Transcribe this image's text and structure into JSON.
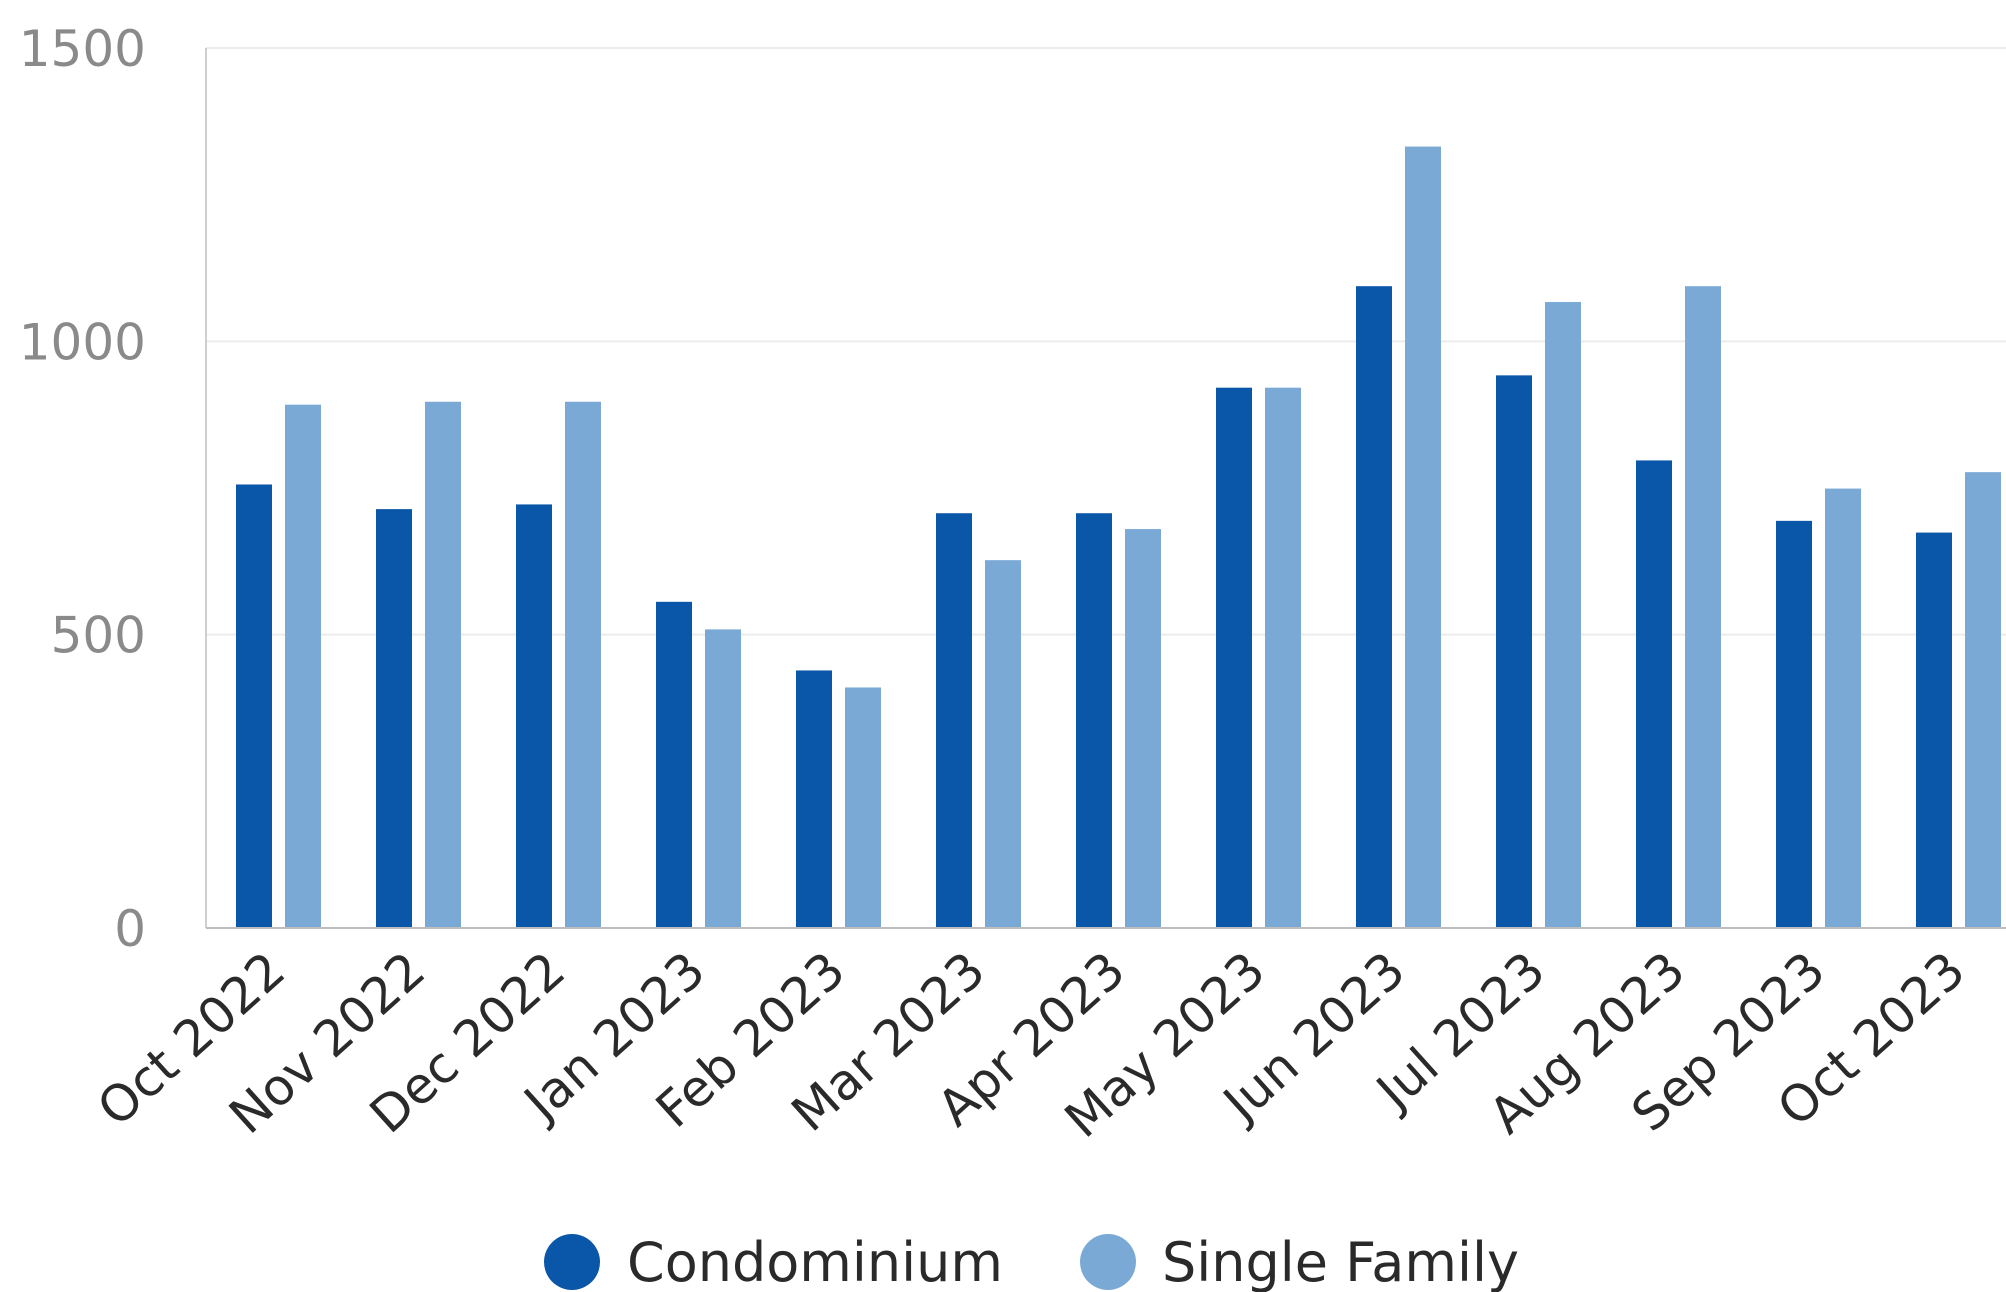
{
  "chart_data": {
    "type": "bar",
    "categories": [
      "Oct 2022",
      "Nov 2022",
      "Dec 2022",
      "Jan 2023",
      "Feb 2023",
      "Mar 2023",
      "Apr 2023",
      "May 2023",
      "Jun 2023",
      "Jul 2023",
      "Aug 2023",
      "Sep 2023",
      "Oct 2023"
    ],
    "series": [
      {
        "name": "Condominium",
        "color": "#0a56a8",
        "values": [
          756,
          714,
          722,
          556,
          439,
          707,
          707,
          921,
          1094,
          942,
          797,
          694,
          674
        ]
      },
      {
        "name": "Single Family",
        "color": "#7aa9d6",
        "values": [
          892,
          897,
          897,
          509,
          410,
          627,
          680,
          921,
          1332,
          1067,
          1094,
          749,
          777
        ]
      }
    ],
    "y_ticks": [
      "0",
      "500",
      "1000",
      "1500"
    ],
    "ylim": [
      0,
      1500
    ],
    "grid": true,
    "legend_position": "bottom-center",
    "title": "",
    "xlabel": "",
    "ylabel": ""
  }
}
